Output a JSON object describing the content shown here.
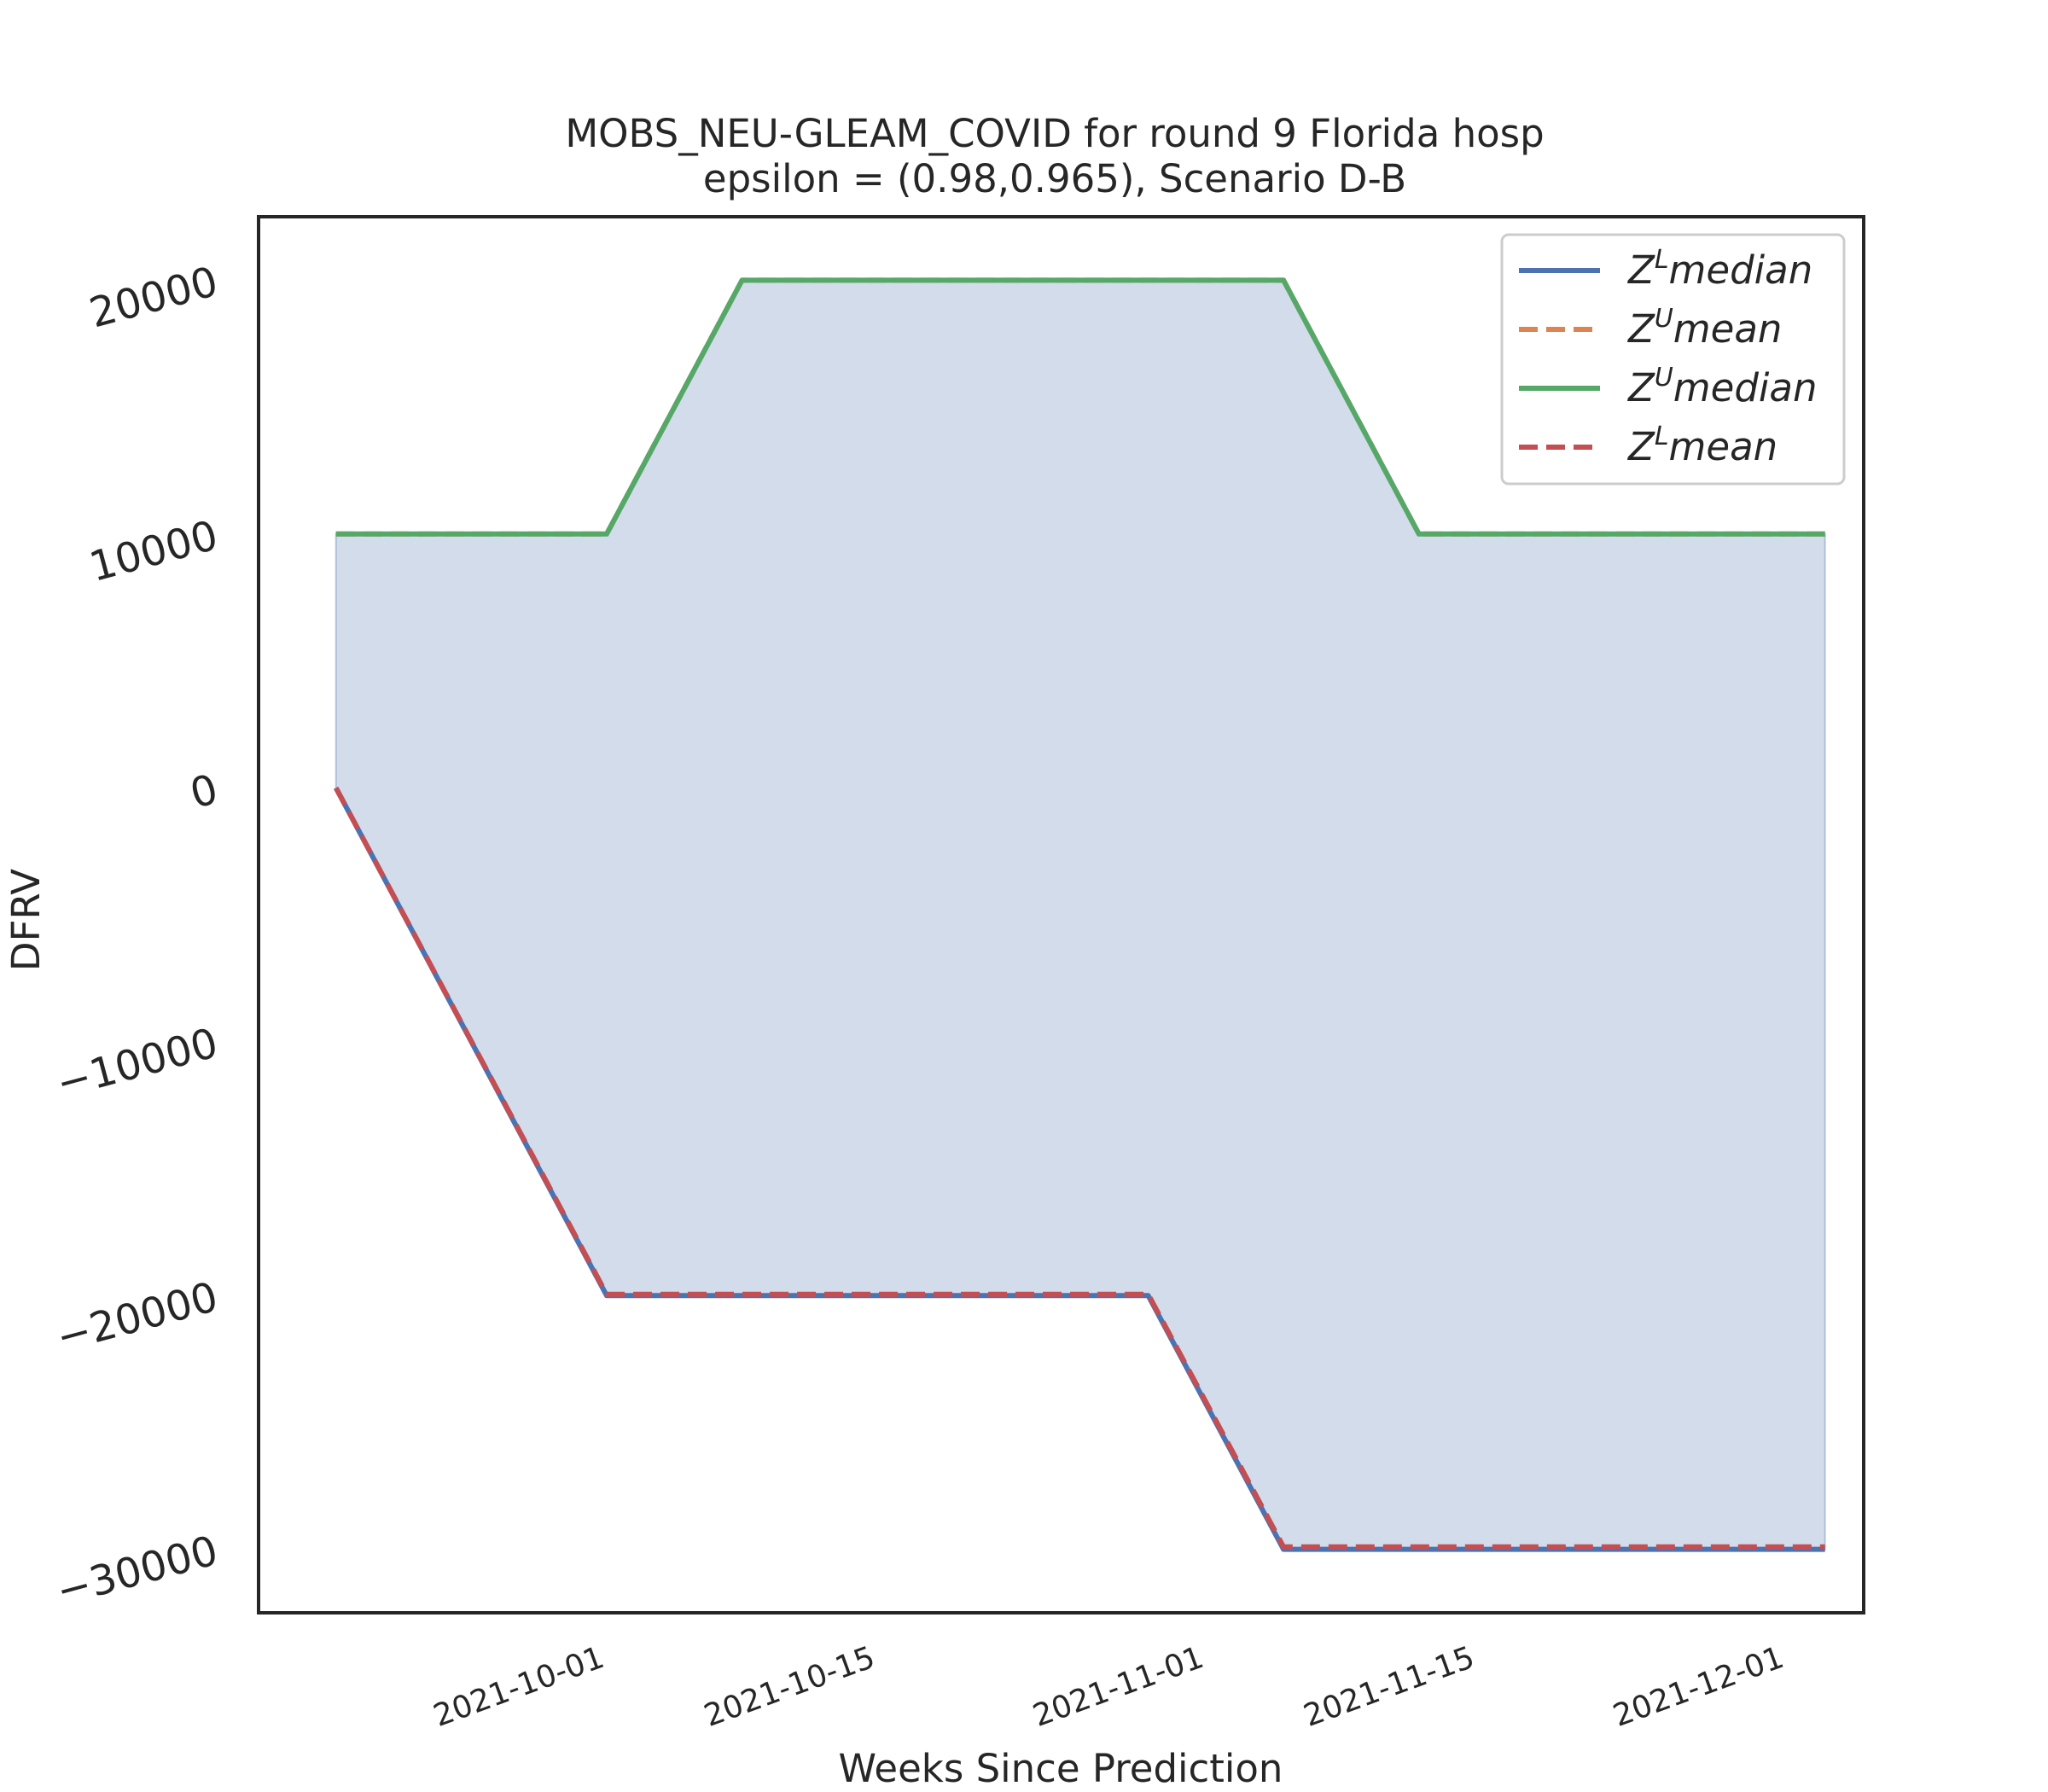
{
  "chart_data": {
    "type": "line",
    "title": "MOBS_NEU-GLEAM_COVID for round 9 Florida  hosp",
    "subtitle": "epsilon = (0.98,0.965), Scenario D-B",
    "xlabel": "Weeks Since Prediction",
    "ylabel": "DFRV",
    "x_is_date": true,
    "x": [
      "2021-09-18",
      "2021-10-02",
      "2021-10-09",
      "2021-10-16",
      "2021-10-23",
      "2021-10-30",
      "2021-11-06",
      "2021-11-13",
      "2021-11-20",
      "2021-11-27",
      "2021-12-04"
    ],
    "xticks": [
      "2021-10-01",
      "2021-10-15",
      "2021-11-01",
      "2021-11-15",
      "2021-12-01"
    ],
    "xtick_labels": [
      "2021-10-01",
      "2021-10-15",
      "2021-11-01",
      "2021-11-15",
      "2021-12-01"
    ],
    "xlim": [
      "2021-09-14",
      "2021-12-06"
    ],
    "ylim": [
      -32500,
      22500
    ],
    "yticks": [
      -30000,
      -20000,
      -10000,
      0,
      10000,
      20000
    ],
    "ytick_labels": [
      "−30000",
      "−20000",
      "−10000",
      "0",
      "10000",
      "20000"
    ],
    "grid": false,
    "legend_position": "top-right",
    "fill_between": {
      "lower": "Z^L median",
      "upper": "Z^U median",
      "color": "#4c72b0",
      "opacity": 0.25
    },
    "series": [
      {
        "name": "Z^L median",
        "base": "Z",
        "sup": "L",
        "word": "median",
        "color": "#4c72b0",
        "dash": "solid",
        "values": [
          0,
          -20000,
          -20000,
          -20000,
          -20000,
          -20000,
          -30000,
          -30000,
          -30000,
          -30000,
          -30000
        ]
      },
      {
        "name": "Z^U mean",
        "base": "Z",
        "sup": "U",
        "word": "mean",
        "color": "#dd8452",
        "dash": "dashed",
        "values": [
          10000,
          10000,
          20000,
          20000,
          20000,
          20000,
          20000,
          10000,
          10000,
          10000,
          10000
        ]
      },
      {
        "name": "Z^U median",
        "base": "Z",
        "sup": "U",
        "word": "median",
        "color": "#55a868",
        "dash": "solid",
        "values": [
          10000,
          10000,
          20000,
          20000,
          20000,
          20000,
          20000,
          10000,
          10000,
          10000,
          10000
        ]
      },
      {
        "name": "Z^L mean",
        "base": "Z",
        "sup": "L",
        "word": "mean",
        "color": "#c44e52",
        "dash": "dashed",
        "values": [
          0,
          -19950,
          -19950,
          -19950,
          -19950,
          -19950,
          -29900,
          -29900,
          -29900,
          -29900,
          -29900
        ]
      }
    ]
  }
}
